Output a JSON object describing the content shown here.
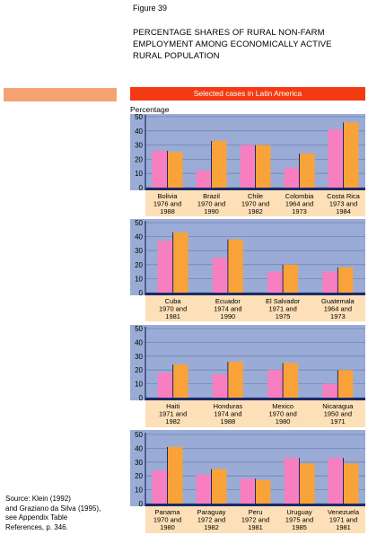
{
  "figure_label": "Figure 39",
  "title_lines": [
    "PERCENTAGE SHARES OF RURAL NON-FARM",
    "EMPLOYMENT AMONG ECONOMICALLY ACTIVE",
    "RURAL POPULATION"
  ],
  "header": "Selected cases in Latin America",
  "source_lines": [
    "Source: Klein (1992)",
    "and Graziano da Silva (1995),",
    "see Appendix Table",
    "References, p. 346."
  ],
  "colors": {
    "first_year": "#f77fc0",
    "second_year": "#f9a23a",
    "panel_bg": "#9aacd6",
    "label_bg": "#fde0b8",
    "header": "#f23b12"
  },
  "chart_data": [
    {
      "type": "bar",
      "ylabel": "Percentage",
      "ylim": [
        0,
        50
      ],
      "yticks": [
        0,
        10,
        20,
        30,
        40,
        50
      ],
      "categories": [
        [
          "Bolivia",
          "1976 and",
          "1988"
        ],
        [
          "Brazil",
          "1970 and",
          "1990"
        ],
        [
          "Chile",
          "1970 and",
          "1982"
        ],
        [
          "Colombia",
          "1964 and",
          "1973"
        ],
        [
          "Costa Rica",
          "1973 and",
          "1984"
        ]
      ],
      "series": [
        {
          "values": [
            26,
            12,
            30,
            14,
            41
          ]
        },
        {
          "values": [
            25,
            33,
            30,
            24,
            46
          ]
        }
      ]
    },
    {
      "type": "bar",
      "ylim": [
        0,
        50
      ],
      "yticks": [
        0,
        10,
        20,
        30,
        40,
        50
      ],
      "categories": [
        [
          "Cuba",
          "1970 and",
          "1981"
        ],
        [
          "Ecuador",
          "1974 and",
          "1990"
        ],
        [
          "El Salvador",
          "1971 and",
          "1975"
        ],
        [
          "Guatemala",
          "1964 and",
          "1973"
        ]
      ],
      "series": [
        {
          "values": [
            37,
            25,
            15,
            15
          ]
        },
        {
          "values": [
            43,
            38,
            20,
            18
          ]
        }
      ]
    },
    {
      "type": "bar",
      "ylim": [
        0,
        50
      ],
      "yticks": [
        0,
        10,
        20,
        30,
        40,
        50
      ],
      "categories": [
        [
          "Haiti",
          "1971 and",
          "1982"
        ],
        [
          "Honduras",
          "1974 and",
          "1988"
        ],
        [
          "Mexico",
          "1970 and",
          "1980"
        ],
        [
          "Nicaragua",
          "1950 and",
          "1971"
        ]
      ],
      "series": [
        {
          "values": [
            18,
            17,
            20,
            10
          ]
        },
        {
          "values": [
            24,
            26,
            25,
            20
          ]
        }
      ]
    },
    {
      "type": "bar",
      "ylim": [
        0,
        50
      ],
      "yticks": [
        0,
        10,
        20,
        30,
        40,
        50
      ],
      "categories": [
        [
          "Panama",
          "1970 and",
          "1980"
        ],
        [
          "Paraguay",
          "1972 and",
          "1982"
        ],
        [
          "Peru",
          "1972 and",
          "1981"
        ],
        [
          "Uruguay",
          "1975 and",
          "1985"
        ],
        [
          "Venezuela",
          "1971 and",
          "1981"
        ]
      ],
      "series": [
        {
          "values": [
            24,
            21,
            18,
            33,
            33
          ]
        },
        {
          "values": [
            41,
            25,
            17,
            29,
            29
          ]
        }
      ]
    }
  ]
}
